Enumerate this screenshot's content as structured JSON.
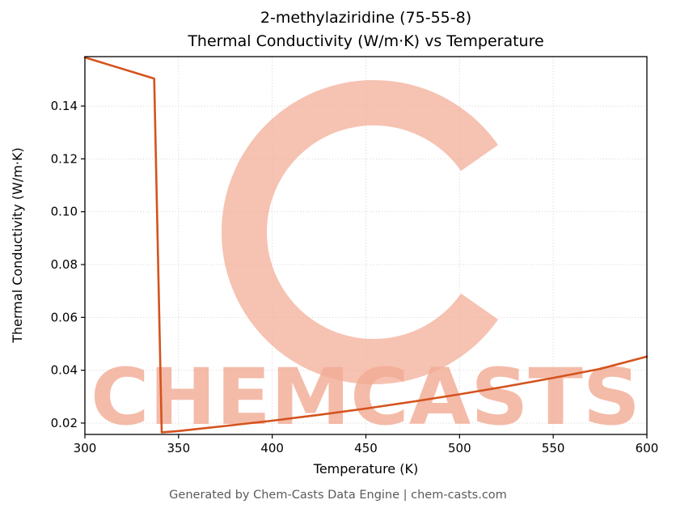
{
  "page": {
    "footer": "Generated by Chem-Casts Data Engine | chem-casts.com"
  },
  "chart_data": {
    "type": "line",
    "title_line1": "2-methylaziridine (75-55-8)",
    "title_line2": "Thermal Conductivity (W/m·K) vs Temperature",
    "xlabel": "Temperature (K)",
    "ylabel": "Thermal Conductivity (W/m·K)",
    "xlim": [
      300,
      600
    ],
    "ylim": [
      0.0157,
      0.1587
    ],
    "xticks": [
      300,
      350,
      400,
      450,
      500,
      550,
      600
    ],
    "ytick_values": [
      0.02,
      0.04,
      0.06,
      0.08,
      0.1,
      0.12,
      0.14
    ],
    "ytick_labels": [
      "0.02",
      "0.04",
      "0.06",
      "0.08",
      "0.10",
      "0.12",
      "0.14"
    ],
    "grid": true,
    "legend": "none",
    "line_color": "#d4531d",
    "watermark_text": "CHEMCASTS",
    "watermark_color": "#f2ab94",
    "series": [
      {
        "name": "Thermal conductivity (W/m·K)",
        "x": [
          300,
          337,
          341,
          350,
          375,
          400,
          425,
          450,
          475,
          500,
          525,
          550,
          575,
          600
        ],
        "y": [
          0.1584,
          0.1504,
          0.0165,
          0.017,
          0.0189,
          0.0209,
          0.0231,
          0.0255,
          0.0281,
          0.0309,
          0.0339,
          0.0371,
          0.0405,
          0.0452
        ]
      }
    ]
  }
}
